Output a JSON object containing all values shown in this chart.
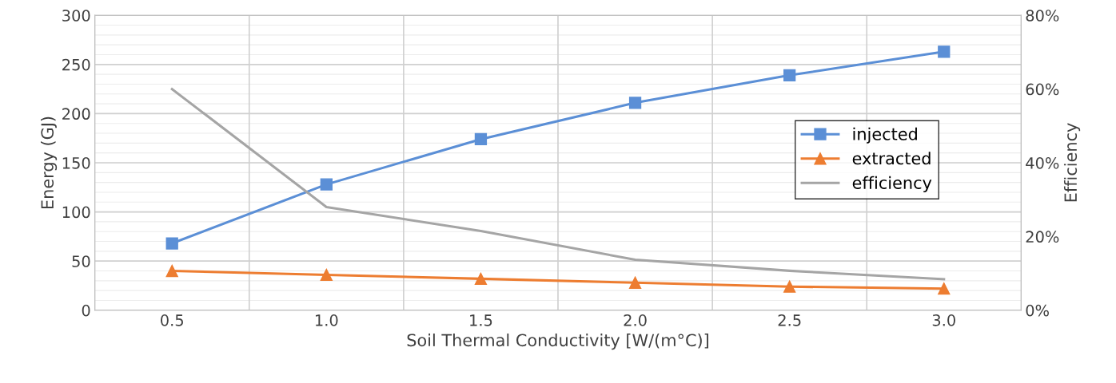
{
  "chart_data": {
    "type": "line",
    "xlabel": "Soil Thermal Conductivity [W/(m°C)]",
    "ylabel": "Energy (GJ)",
    "y2label": "Efficiency",
    "categories": [
      "0.5",
      "1.0",
      "1.5",
      "2.0",
      "2.5",
      "3.0"
    ],
    "series": [
      {
        "name": "injected",
        "color": "#5b8fd6",
        "marker": "square",
        "values": [
          68,
          128,
          174,
          211,
          239,
          263
        ]
      },
      {
        "name": "extracted",
        "color": "#ed7d31",
        "marker": "triangle",
        "values": [
          40,
          36,
          32,
          28,
          24,
          22
        ]
      },
      {
        "name": "efficiency",
        "color": "#a5a5a5",
        "marker": "none",
        "axis": "y2",
        "values": [
          60,
          28,
          21.5,
          13.7,
          10.7,
          8.4
        ]
      }
    ],
    "ylim": [
      0,
      300
    ],
    "yticks": [
      0,
      50,
      100,
      150,
      200,
      250,
      300
    ],
    "y2lim": [
      0,
      80
    ],
    "y2ticks": [
      {
        "value": 0,
        "label": "0%"
      },
      {
        "value": 20,
        "label": "20%"
      },
      {
        "value": 40,
        "label": "40%"
      },
      {
        "value": 60,
        "label": "60%"
      },
      {
        "value": 80,
        "label": "80%"
      }
    ],
    "grid": true,
    "legend": "center right",
    "line_style": "solid"
  }
}
